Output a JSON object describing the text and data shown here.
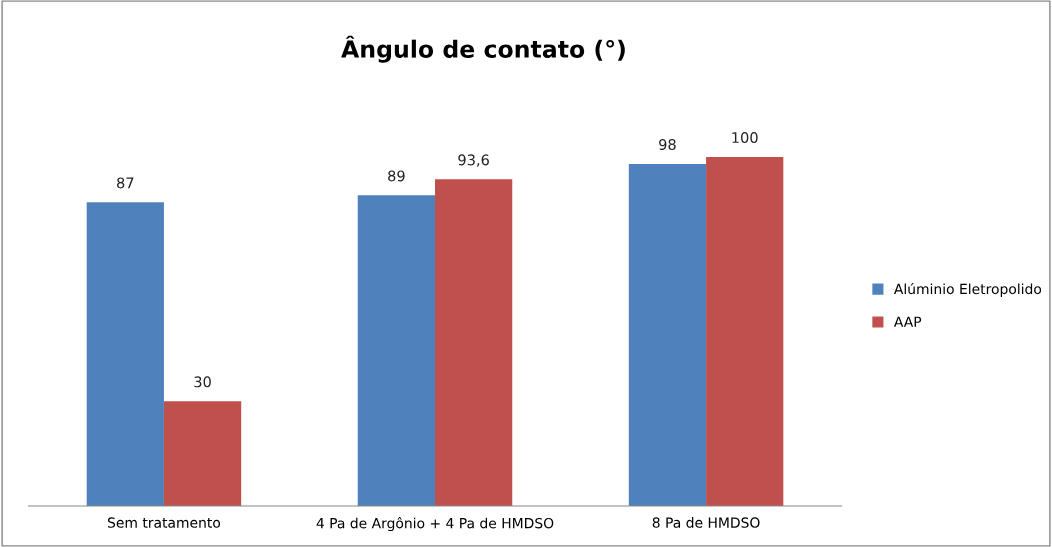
{
  "chart_data": {
    "type": "bar",
    "title": "Ângulo de contato (°)",
    "categories": [
      "Sem tratamento",
      "4 Pa de Argônio + 4 Pa de HMDSO",
      "8 Pa de HMDSO"
    ],
    "series": [
      {
        "name": "Alúminio Eletropolido",
        "color": "#4f81bd",
        "values": [
          87,
          89,
          98
        ],
        "value_labels": [
          "87",
          "89",
          "98"
        ]
      },
      {
        "name": "AAP",
        "color": "#c0504d",
        "values": [
          30,
          93.6,
          100
        ],
        "value_labels": [
          "30",
          "93,6",
          "100"
        ]
      }
    ],
    "tick_labels": "x",
    "grid": false,
    "legend": "right"
  }
}
